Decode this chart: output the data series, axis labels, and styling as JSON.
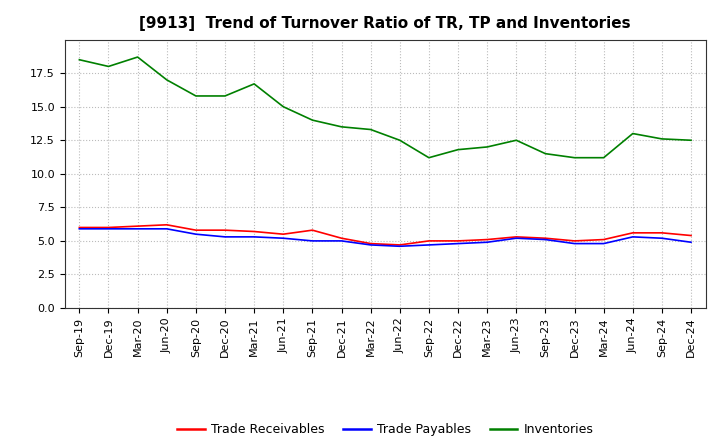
{
  "title": "[9913]  Trend of Turnover Ratio of TR, TP and Inventories",
  "x_labels": [
    "Sep-19",
    "Dec-19",
    "Mar-20",
    "Jun-20",
    "Sep-20",
    "Dec-20",
    "Mar-21",
    "Jun-21",
    "Sep-21",
    "Dec-21",
    "Mar-22",
    "Jun-22",
    "Sep-22",
    "Dec-22",
    "Mar-23",
    "Jun-23",
    "Sep-23",
    "Dec-23",
    "Mar-24",
    "Jun-24",
    "Sep-24",
    "Dec-24"
  ],
  "trade_receivables": [
    6.0,
    6.0,
    6.1,
    6.2,
    5.8,
    5.8,
    5.7,
    5.5,
    5.8,
    5.2,
    4.8,
    4.7,
    5.0,
    5.0,
    5.1,
    5.3,
    5.2,
    5.0,
    5.1,
    5.6,
    5.6,
    5.4
  ],
  "trade_payables": [
    5.9,
    5.9,
    5.9,
    5.9,
    5.5,
    5.3,
    5.3,
    5.2,
    5.0,
    5.0,
    4.7,
    4.6,
    4.7,
    4.8,
    4.9,
    5.2,
    5.1,
    4.8,
    4.8,
    5.3,
    5.2,
    4.9
  ],
  "inventories": [
    18.5,
    18.0,
    18.7,
    17.0,
    15.8,
    15.8,
    16.7,
    15.0,
    14.0,
    13.5,
    13.3,
    12.5,
    11.2,
    11.8,
    12.0,
    12.5,
    11.5,
    11.2,
    11.2,
    13.0,
    12.6,
    12.5
  ],
  "tr_color": "#ff0000",
  "tp_color": "#0000ff",
  "inv_color": "#008000",
  "ylim": [
    0.0,
    20.0
  ],
  "yticks": [
    0.0,
    2.5,
    5.0,
    7.5,
    10.0,
    12.5,
    15.0,
    17.5
  ],
  "legend_labels": [
    "Trade Receivables",
    "Trade Payables",
    "Inventories"
  ],
  "background_color": "#ffffff",
  "grid_color": "#bbbbbb",
  "title_fontsize": 11,
  "tick_fontsize": 8,
  "legend_fontsize": 9
}
